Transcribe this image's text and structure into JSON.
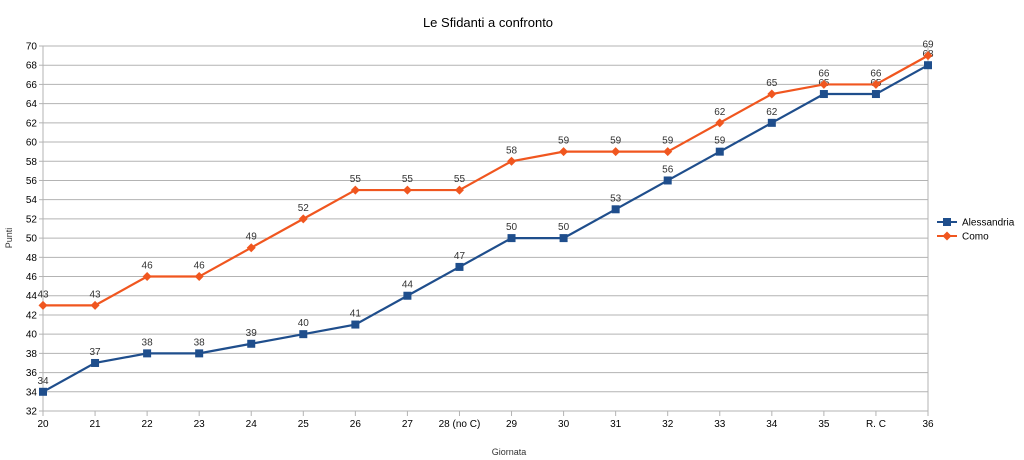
{
  "chart_data": {
    "type": "line",
    "title": "Le Sfidanti a confronto",
    "xlabel": "Giornata",
    "ylabel": "Punti",
    "categories": [
      "20",
      "21",
      "22",
      "23",
      "24",
      "25",
      "26",
      "27",
      "28 (no C)",
      "29",
      "30",
      "31",
      "32",
      "33",
      "34",
      "35",
      "R.   C",
      "36"
    ],
    "ylim": [
      32,
      70
    ],
    "ytick_step": 2,
    "grid": true,
    "legend_position": "right",
    "series": [
      {
        "name": "Alessandria",
        "color": "#1f4e8c",
        "marker": "square",
        "values": [
          34,
          37,
          38,
          38,
          39,
          40,
          41,
          44,
          47,
          50,
          50,
          53,
          56,
          59,
          62,
          65,
          65,
          68
        ]
      },
      {
        "name": "Como",
        "color": "#f0561f",
        "marker": "diamond",
        "values": [
          43,
          43,
          46,
          46,
          49,
          52,
          55,
          55,
          55,
          58,
          59,
          59,
          59,
          62,
          65,
          66,
          66,
          69
        ]
      }
    ]
  }
}
